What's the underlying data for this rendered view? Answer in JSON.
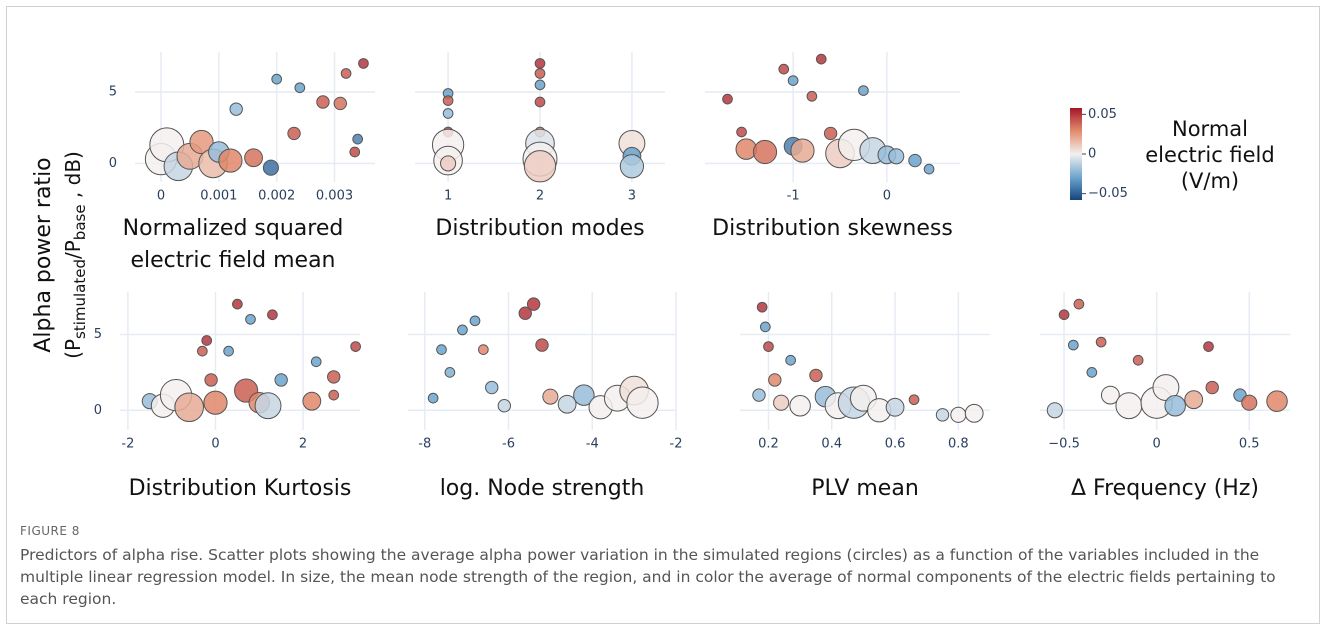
{
  "figure": {
    "y_label": {
      "line1": "Alpha power ratio",
      "parts": [
        "(P",
        "stimulated",
        "/P",
        "base",
        " , dB)"
      ]
    },
    "label": "FIGURE 8",
    "caption": "Predictors of alpha rise. Scatter plots showing the average alpha power variation in the simulated regions (circles) as a function of the variables included in the multiple linear regression model. In size, the mean node strength of the region, and in color the average of normal components of the electric fields pertaining to each region."
  },
  "colorbar": {
    "title": [
      "Normal",
      "electric field",
      "(V/m)"
    ],
    "clim": [
      -0.058,
      0.058
    ],
    "ticks": [
      0.05,
      0,
      {
        "value": -0.05,
        "label": "−0.05"
      }
    ],
    "colorscale": [
      "#14457e",
      "#6ea6cf",
      "#f3f0ef",
      "#e38b6c",
      "#a3162c"
    ]
  },
  "chart_data": [
    {
      "type": "scatter",
      "xlabel": [
        "Normalized squared",
        "electric field mean"
      ],
      "show_ytick_labels": true,
      "grid": true,
      "xlim": [
        -0.00045,
        0.0037
      ],
      "xticks": [
        0,
        0.001,
        0.002,
        0.003
      ],
      "ylim": [
        -1.3,
        7.8
      ],
      "yticks": [
        0,
        5
      ],
      "x": [
        0,
        0.0001,
        0.0003,
        0.0005,
        0.0007,
        0.0009,
        0.001,
        0.0012,
        0.0013,
        0.0016,
        0.0019,
        0.002,
        0.0023,
        0.0024,
        0.0028,
        0.0031,
        0.0032,
        0.0034,
        0.00335,
        0.0035
      ],
      "values": [
        0.3,
        1.3,
        -0.2,
        0.5,
        1.5,
        0.0,
        0.8,
        0.2,
        3.8,
        0.4,
        -0.3,
        5.9,
        2.1,
        5.3,
        4.3,
        4.2,
        6.3,
        1.7,
        0.8,
        7.0
      ],
      "sizes": [
        9,
        10,
        8,
        7,
        6,
        8,
        5,
        6,
        2,
        4,
        3,
        1,
        2,
        1,
        2,
        2,
        1,
        1,
        1,
        1
      ],
      "colors": [
        0.0,
        0.0,
        -0.01,
        0.02,
        0.025,
        0.015,
        -0.02,
        0.03,
        -0.02,
        0.035,
        -0.045,
        -0.03,
        0.04,
        -0.03,
        0.04,
        0.035,
        0.04,
        -0.04,
        0.045,
        0.05
      ]
    },
    {
      "type": "scatter",
      "xlabel": [
        "Distribution modes"
      ],
      "show_ytick_labels": false,
      "grid": true,
      "xlim": [
        0.64,
        3.36
      ],
      "xticks": [
        1,
        2,
        3
      ],
      "ylim": [
        -1.3,
        7.8
      ],
      "yticks": [
        0,
        5
      ],
      "x": [
        1,
        1,
        1,
        1,
        1,
        1,
        1,
        2,
        2,
        2,
        2,
        2,
        2,
        2,
        2,
        3,
        3,
        3
      ],
      "values": [
        4.9,
        4.4,
        3.5,
        2.2,
        1.3,
        0.2,
        0,
        7.0,
        6.3,
        5.5,
        4.3,
        2.2,
        1.4,
        0.3,
        -0.2,
        1.4,
        0.5,
        -0.2
      ],
      "sizes": [
        1,
        1,
        1,
        1,
        9,
        8,
        3,
        1,
        1,
        1,
        1,
        1,
        8,
        10,
        9,
        7,
        4,
        6
      ],
      "colors": [
        -0.03,
        0.04,
        -0.02,
        0.045,
        0.0,
        0.0,
        0.01,
        0.05,
        0.04,
        -0.03,
        0.045,
        0.03,
        -0.005,
        0.0,
        0.01,
        0.005,
        -0.03,
        -0.015
      ]
    },
    {
      "type": "scatter",
      "xlabel": [
        "Distribution skewness"
      ],
      "show_ytick_labels": false,
      "grid": true,
      "xlim": [
        -1.94,
        0.78
      ],
      "xticks": [
        -1,
        0
      ],
      "ylim": [
        -1.3,
        7.8
      ],
      "yticks": [
        0,
        5
      ],
      "x": [
        -1.7,
        -1.55,
        -1.5,
        -1.3,
        -1.1,
        -1.0,
        -1.0,
        -0.9,
        -0.8,
        -0.7,
        -0.6,
        -0.5,
        -0.35,
        -0.25,
        -0.15,
        0.0,
        0.1,
        0.3,
        0.45
      ],
      "values": [
        4.5,
        2.2,
        1.0,
        0.8,
        6.6,
        5.8,
        1.2,
        0.9,
        4.7,
        7.3,
        2.1,
        0.7,
        1.3,
        5.1,
        0.9,
        0.6,
        0.5,
        0.2,
        -0.4
      ],
      "sizes": [
        1,
        1,
        5,
        6,
        1,
        1,
        4,
        6,
        1,
        1,
        2,
        8,
        9,
        1,
        7,
        4,
        3,
        2,
        1
      ],
      "colors": [
        0.05,
        0.045,
        0.03,
        0.035,
        0.045,
        -0.03,
        -0.04,
        0.02,
        0.04,
        0.05,
        0.04,
        0.01,
        0.0,
        -0.03,
        -0.01,
        -0.02,
        -0.02,
        -0.03,
        -0.03
      ]
    },
    {
      "type": "scatter",
      "xlabel": [
        "Distribution Kurtosis"
      ],
      "show_ytick_labels": true,
      "grid": true,
      "xlim": [
        -2.18,
        3.3
      ],
      "xticks": [
        -2,
        0,
        2
      ],
      "ylim": [
        -1.3,
        7.8
      ],
      "yticks": [
        0,
        5
      ],
      "x": [
        -1.5,
        -1.2,
        -0.9,
        -0.6,
        -0.3,
        -0.2,
        -0.1,
        0.0,
        0.3,
        0.5,
        0.7,
        0.8,
        1.0,
        1.2,
        1.3,
        1.5,
        2.2,
        2.3,
        2.7,
        2.7,
        3.2
      ],
      "values": [
        0.6,
        0.3,
        1.0,
        0.2,
        3.9,
        4.6,
        2.0,
        0.5,
        3.9,
        7.0,
        1.3,
        6.0,
        0.5,
        0.3,
        6.3,
        2.0,
        0.6,
        3.2,
        2.2,
        1.0,
        4.2
      ],
      "sizes": [
        3,
        6,
        9,
        8,
        1,
        1,
        2,
        6,
        1,
        1,
        6,
        1,
        5,
        7,
        1,
        2,
        4,
        1,
        2,
        1,
        1
      ],
      "colors": [
        -0.02,
        0.0,
        0.0,
        0.02,
        0.04,
        0.05,
        0.04,
        0.03,
        -0.03,
        0.05,
        0.04,
        -0.03,
        0.03,
        -0.01,
        0.05,
        -0.03,
        0.03,
        -0.03,
        0.04,
        0.04,
        0.045
      ]
    },
    {
      "type": "scatter",
      "xlabel": [
        "log. Node strength"
      ],
      "show_ytick_labels": false,
      "grid": true,
      "xlim": [
        -8.4,
        -2
      ],
      "xticks": [
        -8,
        -6,
        -4,
        -2
      ],
      "ylim": [
        -1.3,
        7.8
      ],
      "yticks": [
        0,
        5
      ],
      "x": [
        -7.8,
        -7.6,
        -7.4,
        -7.1,
        -6.8,
        -6.6,
        -6.4,
        -6.1,
        -5.6,
        -5.4,
        -5.2,
        -5.0,
        -4.6,
        -4.2,
        -3.8,
        -3.4,
        -3.0,
        -2.8
      ],
      "values": [
        0.8,
        4.0,
        2.5,
        5.3,
        5.9,
        4.0,
        1.5,
        0.3,
        6.4,
        7.0,
        4.3,
        0.9,
        0.4,
        1.0,
        0.2,
        0.8,
        1.3,
        0.5
      ],
      "sizes": [
        1,
        1,
        1,
        1,
        1,
        1,
        2,
        2,
        2,
        2,
        2,
        3,
        4,
        5,
        6,
        7,
        8,
        9
      ],
      "colors": [
        -0.03,
        -0.03,
        -0.025,
        -0.03,
        -0.03,
        0.03,
        -0.02,
        -0.01,
        0.05,
        0.05,
        0.045,
        0.02,
        -0.01,
        -0.02,
        0.0,
        0.0,
        0.005,
        0.0
      ]
    },
    {
      "type": "scatter",
      "xlabel": [
        "PLV mean"
      ],
      "show_ytick_labels": false,
      "grid": true,
      "xlim": [
        0.11,
        0.9
      ],
      "xticks": [
        0.2,
        0.4,
        0.6,
        0.8
      ],
      "ylim": [
        -1.3,
        7.8
      ],
      "yticks": [
        0,
        5
      ],
      "x": [
        0.17,
        0.18,
        0.19,
        0.2,
        0.22,
        0.24,
        0.27,
        0.3,
        0.35,
        0.38,
        0.42,
        0.47,
        0.5,
        0.55,
        0.6,
        0.66,
        0.75,
        0.8,
        0.85
      ],
      "values": [
        1.0,
        6.8,
        5.5,
        4.2,
        2.0,
        0.5,
        3.3,
        0.3,
        2.3,
        0.9,
        0.3,
        0.5,
        0.8,
        0.0,
        0.2,
        0.7,
        -0.3,
        -0.3,
        -0.2
      ],
      "sizes": [
        2,
        1,
        1,
        1,
        2,
        3,
        1,
        5,
        2,
        5,
        7,
        9,
        7,
        6,
        4,
        1,
        2,
        3,
        4
      ],
      "colors": [
        -0.02,
        0.05,
        -0.03,
        0.045,
        0.03,
        0.01,
        -0.03,
        0.0,
        0.04,
        -0.02,
        0.0,
        -0.01,
        0.0,
        0.0,
        -0.01,
        0.04,
        -0.01,
        0.0,
        0.0
      ]
    },
    {
      "type": "scatter",
      "xlabel": [
        "Δ Frequency (Hz)"
      ],
      "show_ytick_labels": false,
      "grid": true,
      "xlim": [
        -0.63,
        0.72
      ],
      "xticks": [
        {
          "value": -0.5,
          "label": "−0.5"
        },
        0,
        0.5
      ],
      "ylim": [
        -1.3,
        7.8
      ],
      "yticks": [
        0,
        5
      ],
      "x": [
        -0.55,
        -0.5,
        -0.45,
        -0.42,
        -0.35,
        -0.3,
        -0.25,
        -0.15,
        -0.1,
        0,
        0.05,
        0.1,
        0.2,
        0.28,
        0.3,
        0.45,
        0.5,
        0.65
      ],
      "values": [
        0.0,
        6.3,
        4.3,
        7.0,
        2.5,
        4.5,
        1.0,
        0.3,
        3.3,
        0.5,
        1.5,
        0.3,
        0.7,
        4.2,
        1.5,
        1.0,
        0.5,
        0.6
      ],
      "sizes": [
        3,
        1,
        1,
        1,
        1,
        1,
        4,
        7,
        1,
        9,
        7,
        5,
        4,
        1,
        2,
        2,
        3,
        5
      ],
      "colors": [
        -0.01,
        0.05,
        -0.03,
        0.04,
        -0.03,
        0.04,
        0.0,
        0.0,
        0.04,
        0.0,
        0.0,
        -0.02,
        0.02,
        0.05,
        0.04,
        -0.03,
        0.035,
        0.03
      ]
    }
  ]
}
